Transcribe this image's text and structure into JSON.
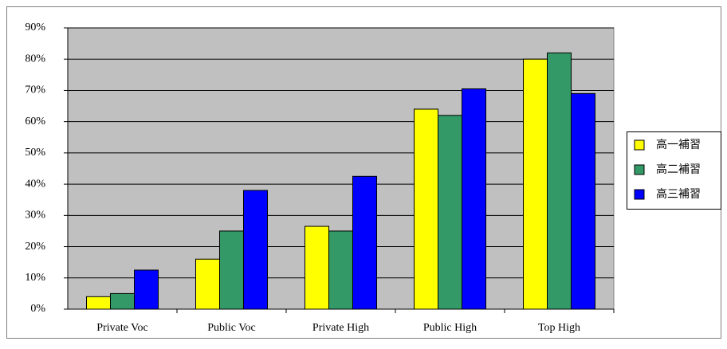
{
  "chart_data": {
    "type": "bar",
    "categories": [
      "Private Voc",
      "Public Voc",
      "Private High",
      "Public High",
      "Top High"
    ],
    "series": [
      {
        "name": "高一補習",
        "color": "#ffff00",
        "values": [
          4,
          16,
          26.5,
          64,
          80
        ]
      },
      {
        "name": "高二補習",
        "color": "#339966",
        "values": [
          5,
          25,
          25,
          62,
          82
        ]
      },
      {
        "name": "高三補習",
        "color": "#0000ff",
        "values": [
          12.5,
          38,
          42.5,
          70.5,
          69
        ]
      }
    ],
    "ylim": [
      0,
      90
    ],
    "yticks": [
      {
        "value": 0,
        "label": "0%"
      },
      {
        "value": 10,
        "label": "10%"
      },
      {
        "value": 20,
        "label": "20%"
      },
      {
        "value": 30,
        "label": "30%"
      },
      {
        "value": 40,
        "label": "40%"
      },
      {
        "value": 50,
        "label": "50%"
      },
      {
        "value": 60,
        "label": "60%"
      },
      {
        "value": 70,
        "label": "70%"
      },
      {
        "value": 80,
        "label": "80%"
      },
      {
        "value": 90,
        "label": "90%"
      }
    ],
    "grid": true,
    "legend": "right",
    "plot_background": "#c0c0c0"
  }
}
